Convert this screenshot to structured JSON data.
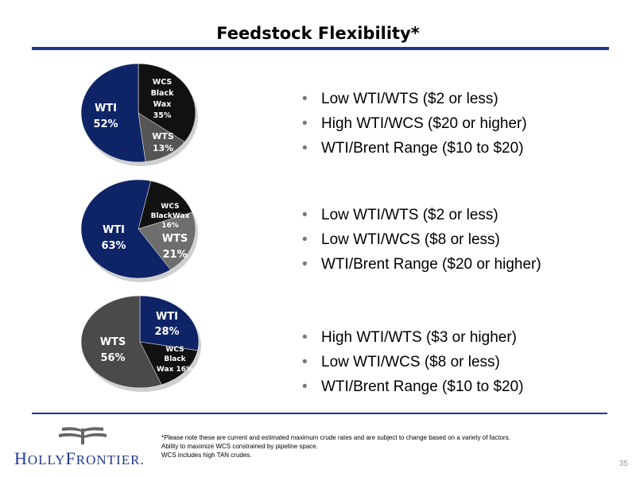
{
  "title": "Feedstock Flexibility*",
  "chart_data": [
    {
      "type": "pie",
      "slices": [
        {
          "label": "WTI",
          "value": 52,
          "value_label": "52%",
          "color": "#0e2466"
        },
        {
          "label": "WCS Black Wax",
          "value": 35,
          "value_label": "35%",
          "color": "#111111"
        },
        {
          "label": "WTS",
          "value": 13,
          "value_label": "13%",
          "color": "#555555"
        }
      ]
    },
    {
      "type": "pie",
      "slices": [
        {
          "label": "WTI",
          "value": 63,
          "value_label": "63%",
          "color": "#0e2466"
        },
        {
          "label": "WCS BlackWax",
          "value": 16,
          "value_label": "16%",
          "color": "#111111"
        },
        {
          "label": "WTS",
          "value": 21,
          "value_label": "21%",
          "color": "#6e6e6e"
        }
      ]
    },
    {
      "type": "pie",
      "slices": [
        {
          "label": "WTI",
          "value": 28,
          "value_label": "28%",
          "color": "#0e2466"
        },
        {
          "label": "WCS Black Wax",
          "value": 16,
          "value_label": "16%",
          "color": "#111111"
        },
        {
          "label": "WTS",
          "value": 56,
          "value_label": "56%",
          "color": "#4a4a4a"
        }
      ]
    }
  ],
  "bullet_groups": [
    [
      "Low WTI/WTS ($2 or less)",
      "High WTI/WCS ($20 or higher)",
      "WTI/Brent Range ($10 to $20)"
    ],
    [
      "Low WTI/WTS ($2 or less)",
      "Low WTI/WCS ($8 or less)",
      "WTI/Brent Range ($20 or higher)"
    ],
    [
      "High WTI/WTS ($3 or higher)",
      "Low WTI/WCS ($8 or less)",
      "WTI/Brent Range ($10 to $20)"
    ]
  ],
  "bullet_glyph": "•",
  "footnote": [
    "*Please note these are current and estimated maximum crude rates and are subject to change based on a variety of factors.",
    "Ability to maximize WCS constrained by pipeline space.",
    "WCS includes high TAN crudes."
  ],
  "logo": {
    "part1": "H",
    "part2": "OLLY",
    "part3": "F",
    "part4": "RONTIER",
    "mark": "."
  },
  "page_number": "35"
}
